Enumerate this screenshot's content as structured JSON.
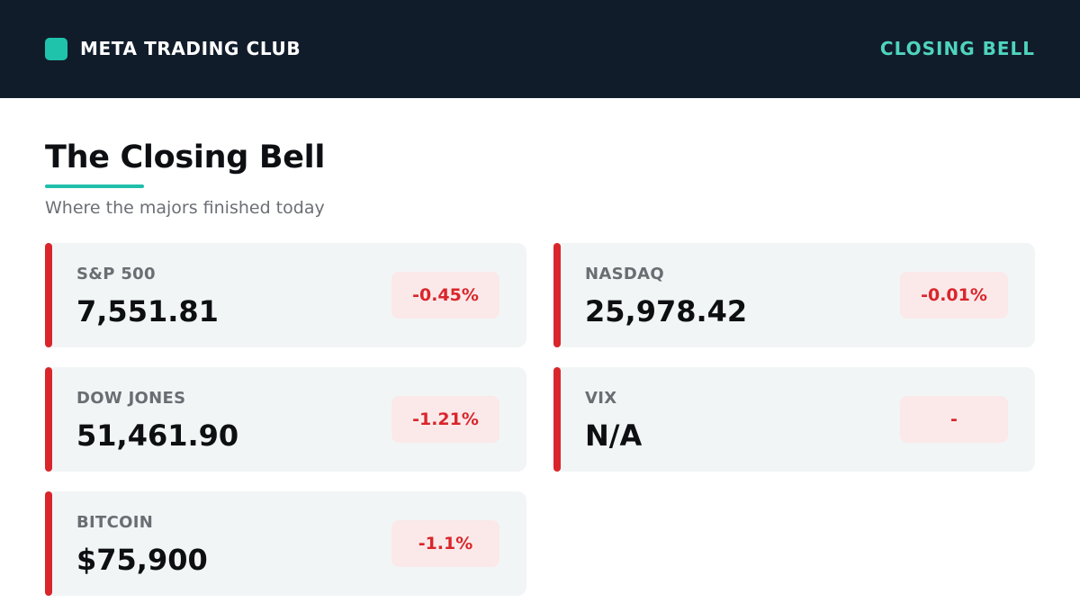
{
  "header": {
    "brand": "META TRADING CLUB",
    "section": "CLOSING BELL",
    "brand_logo_icon": "square-logo-icon",
    "colors": {
      "background": "#111c2b",
      "accent": "#1fc3ac",
      "section_label": "#4fd4be"
    }
  },
  "main": {
    "title": "The Closing Bell",
    "subtitle": "Where the majors finished today"
  },
  "markets": [
    {
      "name": "S&P 500",
      "value": "7,551.81",
      "change": "-0.45%"
    },
    {
      "name": "NASDAQ",
      "value": "25,978.42",
      "change": "-0.01%"
    },
    {
      "name": "DOW JONES",
      "value": "51,461.90",
      "change": "-1.21%"
    },
    {
      "name": "VIX",
      "value": "N/A",
      "change": "-"
    },
    {
      "name": "BITCOIN",
      "value": "$75,900",
      "change": "-1.1%"
    }
  ],
  "status_colors": {
    "negative": "#d9262b",
    "negative_bg": "#fbe9ea",
    "card_bg": "#f2f5f6"
  }
}
